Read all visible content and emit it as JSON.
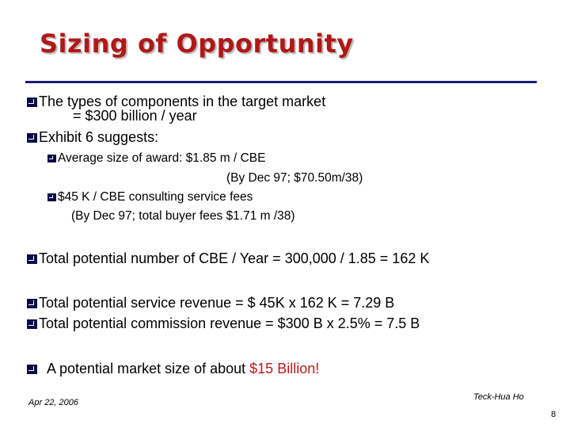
{
  "slide": {
    "title": "Sizing of Opportunity",
    "lines": [
      {
        "text": "The types of components in the target market"
      },
      {
        "text": "= $300 billion / year"
      },
      {
        "text": "Exhibit 6 suggests:"
      },
      {
        "text": "Average size of award:  $1.85 m / CBE"
      },
      {
        "text": "(By Dec 97; $70.50m/38)"
      },
      {
        "text": "$45 K / CBE consulting service fees"
      },
      {
        "text": "(By Dec 97; total buyer fees $1.71 m /38)"
      },
      {
        "text": "Total potential number of CBE / Year = 300,000 / 1.85 = 162 K"
      },
      {
        "text": "Total potential service revenue = $ 45K x 162 K = 7.29 B"
      },
      {
        "text": "Total potential commission revenue = $300 B x 2.5% = 7.5 B"
      }
    ],
    "conclusion": {
      "prefix": "A potential market size of about ",
      "highlight": "$15 Billion!"
    },
    "footer": {
      "date": "Apr 22, 2006",
      "author": "Teck-Hua Ho",
      "page": "8"
    },
    "colors": {
      "title": "#b01818",
      "rule": "#1a1a7a",
      "highlight": "#c0181c"
    }
  }
}
